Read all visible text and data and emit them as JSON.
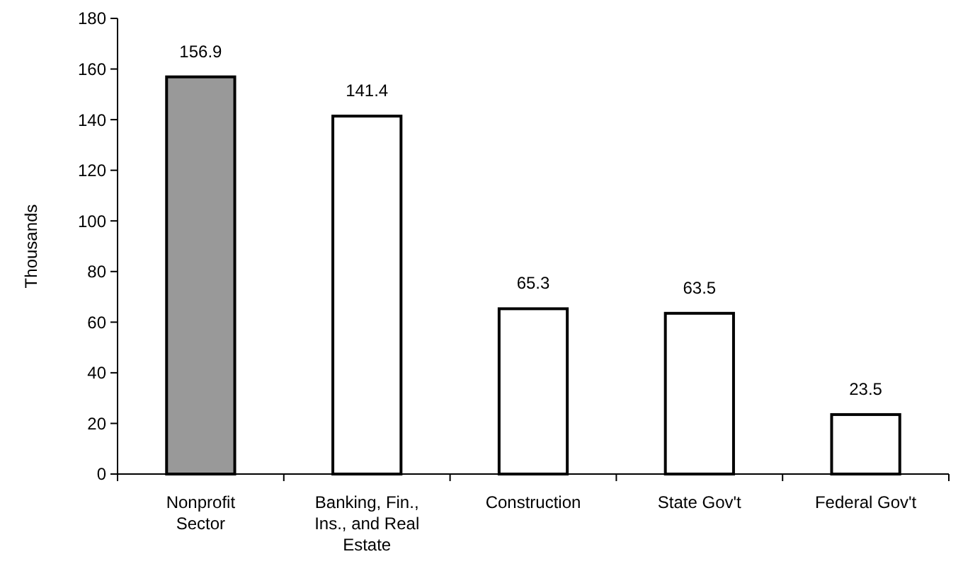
{
  "chart_data": {
    "type": "bar",
    "ylabel": "Thousands",
    "categories": [
      "Nonprofit Sector",
      "Banking, Fin., Ins., and Real Estate",
      "Construction",
      "State Gov't",
      "Federal Gov't"
    ],
    "values": [
      156.9,
      141.4,
      65.3,
      63.5,
      23.5
    ],
    "colors": [
      "#999999",
      "#ffffff",
      "#ffffff",
      "#ffffff",
      "#ffffff"
    ],
    "ylim": [
      0,
      180
    ],
    "yticks": [
      0,
      20,
      40,
      60,
      80,
      100,
      120,
      140,
      160,
      180
    ],
    "data_labels": true
  }
}
